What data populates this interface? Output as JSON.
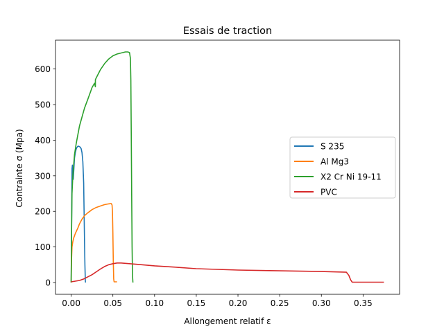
{
  "chart_data": {
    "type": "line",
    "title": "Essais de traction",
    "xlabel": "Allongement relatif ε",
    "ylabel": "Contrainte σ (Mpa)",
    "xlim": [
      -0.0188,
      0.3938
    ],
    "ylim": [
      -33,
      681
    ],
    "xticks": [
      0.0,
      0.05,
      0.1,
      0.15,
      0.2,
      0.25,
      0.3,
      0.35
    ],
    "xtick_labels": [
      "0.00",
      "0.05",
      "0.10",
      "0.15",
      "0.20",
      "0.25",
      "0.30",
      "0.35"
    ],
    "yticks": [
      0,
      100,
      200,
      300,
      400,
      500,
      600
    ],
    "ytick_labels": [
      "0",
      "100",
      "200",
      "300",
      "400",
      "500",
      "600"
    ],
    "grid": false,
    "legend_position": "center-right",
    "series": [
      {
        "name": "S 235",
        "color": "#1f77b4",
        "x": [
          0.0,
          0.0005,
          0.001,
          0.0015,
          0.002,
          0.0025,
          0.003,
          0.0035,
          0.004,
          0.005,
          0.006,
          0.007,
          0.008,
          0.009,
          0.01,
          0.011,
          0.012,
          0.013,
          0.014,
          0.015,
          0.0155,
          0.016,
          0.0165,
          0.017,
          0.0172
        ],
        "y": [
          0,
          160,
          320,
          330,
          300,
          290,
          310,
          330,
          350,
          365,
          375,
          380,
          383,
          383,
          382,
          380,
          376,
          365,
          340,
          280,
          200,
          120,
          50,
          5,
          0
        ]
      },
      {
        "name": "Al Mg3",
        "color": "#ff7f0e",
        "x": [
          0.0,
          0.0005,
          0.001,
          0.002,
          0.003,
          0.005,
          0.008,
          0.01,
          0.013,
          0.016,
          0.02,
          0.025,
          0.03,
          0.035,
          0.04,
          0.045,
          0.048,
          0.049,
          0.0495,
          0.05,
          0.0505,
          0.051,
          0.0515,
          0.052,
          0.055
        ],
        "y": [
          0,
          70,
          100,
          115,
          125,
          138,
          153,
          165,
          178,
          188,
          196,
          205,
          211,
          215,
          219,
          221,
          222,
          218,
          200,
          140,
          60,
          10,
          2,
          2,
          2
        ]
      },
      {
        "name": "X2 Cr Ni 19-11",
        "color": "#2ca02c",
        "x": [
          0.0,
          0.0005,
          0.001,
          0.002,
          0.004,
          0.006,
          0.008,
          0.01,
          0.013,
          0.016,
          0.02,
          0.025,
          0.028,
          0.029,
          0.029,
          0.03,
          0.035,
          0.04,
          0.045,
          0.05,
          0.055,
          0.06,
          0.065,
          0.068,
          0.07,
          0.071,
          0.0715,
          0.072,
          0.0725,
          0.073,
          0.0735,
          0.074
        ],
        "y": [
          0,
          150,
          250,
          300,
          360,
          390,
          415,
          440,
          465,
          490,
          515,
          548,
          560,
          550,
          570,
          575,
          598,
          615,
          628,
          637,
          642,
          645,
          648,
          648,
          646,
          630,
          570,
          420,
          250,
          100,
          20,
          0
        ]
      },
      {
        "name": "PVC",
        "color": "#d62728",
        "x": [
          0.0,
          0.005,
          0.01,
          0.015,
          0.02,
          0.025,
          0.03,
          0.035,
          0.04,
          0.045,
          0.05,
          0.055,
          0.06,
          0.065,
          0.07,
          0.08,
          0.1,
          0.12,
          0.15,
          0.2,
          0.25,
          0.3,
          0.33,
          0.333,
          0.335,
          0.337,
          0.34,
          0.35,
          0.36,
          0.375
        ],
        "y": [
          2,
          4,
          6,
          10,
          16,
          22,
          30,
          38,
          45,
          50,
          53,
          55,
          55,
          54,
          53,
          51,
          47,
          44,
          39,
          35,
          33,
          31,
          29,
          20,
          8,
          1,
          1,
          1,
          1,
          1
        ]
      }
    ]
  }
}
